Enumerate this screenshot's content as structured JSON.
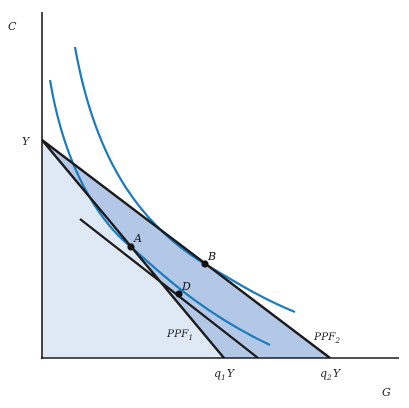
{
  "figure": {
    "axes": {
      "y_label": "C",
      "x_label": "G",
      "y_intercept_label": "Y"
    },
    "intercepts": {
      "q1": {
        "prefix": "q",
        "sub": "1",
        "suffix": "Y"
      },
      "q2": {
        "prefix": "q",
        "sub": "2",
        "suffix": "Y"
      }
    },
    "curves": {
      "ppf1": {
        "base": "PPF",
        "sub": "1"
      },
      "ppf2": {
        "base": "PPF",
        "sub": "2"
      }
    },
    "points": {
      "A": "A",
      "B": "B",
      "D": "D"
    },
    "colors": {
      "indifference": "#1b7bbd",
      "shaded_light": "#dfe8f5",
      "shaded_dark": "#b3c7e6",
      "line": "#1a1a1a"
    }
  }
}
